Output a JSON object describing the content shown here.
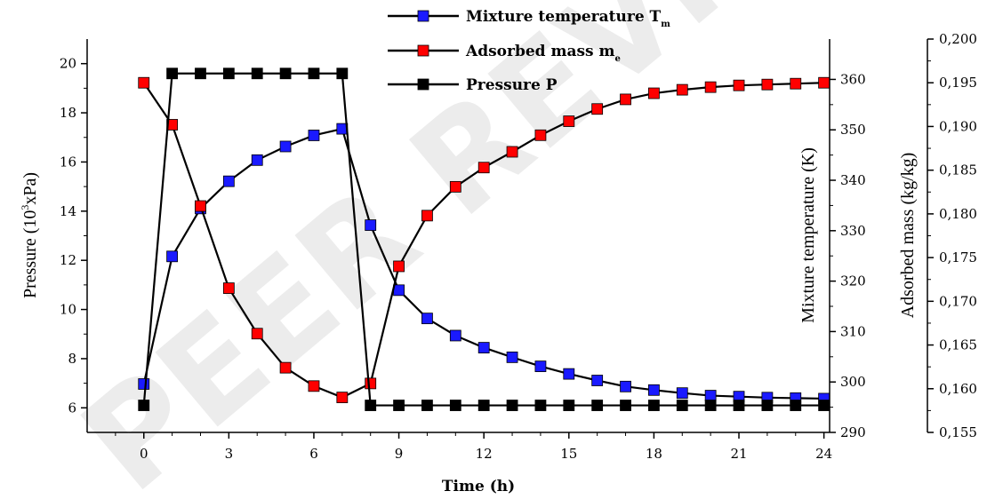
{
  "watermark": "PEER REVIEW",
  "chart_data": {
    "type": "line",
    "x": [
      0,
      1,
      2,
      3,
      4,
      5,
      6,
      7,
      8,
      9,
      10,
      11,
      12,
      13,
      14,
      15,
      16,
      17,
      18,
      19,
      20,
      21,
      22,
      23,
      24
    ],
    "xlabel": "Time (h)",
    "xlim": [
      -2,
      24.2
    ],
    "xticks": [
      0,
      3,
      6,
      9,
      12,
      15,
      18,
      21,
      24
    ],
    "axes": {
      "left": {
        "label_main": "Pressure (10",
        "label_sup": "3",
        "label_tail": "xPa)",
        "ylim": [
          5,
          21
        ],
        "ticks": [
          6,
          8,
          10,
          12,
          14,
          16,
          18,
          20
        ],
        "tick_labels": [
          "6",
          "8",
          "10",
          "12",
          "14",
          "16",
          "18",
          "20"
        ]
      },
      "right1": {
        "label": "Mixture temperature (K)",
        "ylim": [
          290,
          368
        ],
        "ticks": [
          290,
          300,
          310,
          320,
          330,
          340,
          350,
          360
        ],
        "tick_labels": [
          "290",
          "300",
          "310",
          "320",
          "330",
          "340",
          "350",
          "360"
        ]
      },
      "right2": {
        "label": "Adsorbed mass (kg/kg)",
        "ylim": [
          0.155,
          0.2
        ],
        "ticks": [
          0.155,
          0.16,
          0.165,
          0.17,
          0.175,
          0.18,
          0.185,
          0.19,
          0.195,
          0.2
        ],
        "tick_labels": [
          "0,155",
          "0,160",
          "0,165",
          "0,170",
          "0,175",
          "0,180",
          "0,185",
          "0,190",
          "0,195",
          "0,200"
        ]
      }
    },
    "series": [
      {
        "name": "Mixture temperature T",
        "name_sub": "m",
        "axis": "right1",
        "color": "#1a1aff",
        "values": [
          299.6,
          324.9,
          334.4,
          339.8,
          344.0,
          346.7,
          348.9,
          350.2,
          331.1,
          318.2,
          312.6,
          309.2,
          306.8,
          304.9,
          303.1,
          301.6,
          300.3,
          299.1,
          298.4,
          297.8,
          297.3,
          297.1,
          296.9,
          296.8,
          296.7
        ]
      },
      {
        "name": "Adsorbed mass m",
        "name_sub": "e",
        "axis": "right2",
        "color": "#ff0000",
        "values": [
          0.195,
          0.1902,
          0.1809,
          0.1715,
          0.1663,
          0.1624,
          0.1603,
          0.159,
          0.1606,
          0.174,
          0.1798,
          0.1831,
          0.1853,
          0.1871,
          0.189,
          0.1906,
          0.192,
          0.1931,
          0.1938,
          0.1942,
          0.1945,
          0.1947,
          0.1948,
          0.1949,
          0.195
        ]
      },
      {
        "name": "Pressure P",
        "name_sub": "",
        "axis": "left",
        "color": "#000000",
        "values": [
          6.1,
          19.6,
          19.6,
          19.6,
          19.6,
          19.6,
          19.6,
          19.6,
          6.1,
          6.1,
          6.1,
          6.1,
          6.1,
          6.1,
          6.1,
          6.1,
          6.1,
          6.1,
          6.1,
          6.1,
          6.1,
          6.1,
          6.1,
          6.1,
          6.1
        ]
      }
    ]
  }
}
